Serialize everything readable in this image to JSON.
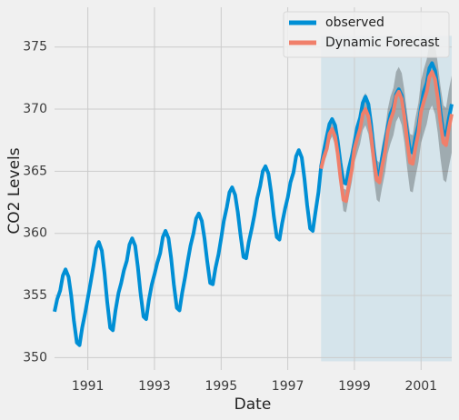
{
  "chart_data": {
    "type": "line",
    "xlabel": "Date",
    "ylabel": "CO2 Levels",
    "xlim": [
      1990,
      2001.92
    ],
    "ylim": [
      349,
      378.2
    ],
    "xticks": [
      1991,
      1993,
      1995,
      1997,
      1999,
      2001
    ],
    "yticks": [
      350,
      355,
      360,
      365,
      370,
      375
    ],
    "grid": true,
    "legend": "upper right",
    "shaded_region": {
      "x": [
        1998,
        2001.92
      ],
      "y": [
        349.7,
        375.9
      ],
      "color": "#d5e4eb"
    },
    "series": [
      {
        "name": "observed",
        "color": "#008fd5",
        "x": [
          1990,
          1990.08,
          1990.17,
          1990.25,
          1990.33,
          1990.42,
          1990.5,
          1990.58,
          1990.67,
          1990.75,
          1990.83,
          1990.92,
          1991,
          1991.08,
          1991.17,
          1991.25,
          1991.33,
          1991.42,
          1991.5,
          1991.58,
          1991.67,
          1991.75,
          1991.83,
          1991.92,
          1992,
          1992.08,
          1992.17,
          1992.25,
          1992.33,
          1992.42,
          1992.5,
          1992.58,
          1992.67,
          1992.75,
          1992.83,
          1992.92,
          1993,
          1993.08,
          1993.17,
          1993.25,
          1993.33,
          1993.42,
          1993.5,
          1993.58,
          1993.67,
          1993.75,
          1993.83,
          1993.92,
          1994,
          1994.08,
          1994.17,
          1994.25,
          1994.33,
          1994.42,
          1994.5,
          1994.58,
          1994.67,
          1994.75,
          1994.83,
          1994.92,
          1995,
          1995.08,
          1995.17,
          1995.25,
          1995.33,
          1995.42,
          1995.5,
          1995.58,
          1995.67,
          1995.75,
          1995.83,
          1995.92,
          1996,
          1996.08,
          1996.17,
          1996.25,
          1996.33,
          1996.42,
          1996.5,
          1996.58,
          1996.67,
          1996.75,
          1996.83,
          1996.92,
          1997,
          1997.08,
          1997.17,
          1997.25,
          1997.33,
          1997.42,
          1997.5,
          1997.58,
          1997.67,
          1997.75,
          1997.83,
          1997.92,
          1998,
          1998.08,
          1998.17,
          1998.25,
          1998.33,
          1998.42,
          1998.5,
          1998.58,
          1998.67,
          1998.75,
          1998.83,
          1998.92,
          1999,
          1999.08,
          1999.17,
          1999.25,
          1999.33,
          1999.42,
          1999.5,
          1999.58,
          1999.67,
          1999.75,
          1999.83,
          1999.92,
          2000,
          2000.08,
          2000.17,
          2000.25,
          2000.33,
          2000.42,
          2000.5,
          2000.58,
          2000.67,
          2000.75,
          2000.83,
          2000.92,
          2001,
          2001.08,
          2001.17,
          2001.25,
          2001.33,
          2001.42,
          2001.5,
          2001.58,
          2001.67,
          2001.75,
          2001.83,
          2001.92
        ],
        "values": [
          353.7,
          354.7,
          355.4,
          356.6,
          357.1,
          356.5,
          355.0,
          353.0,
          351.2,
          351.0,
          352.4,
          353.6,
          354.8,
          356.0,
          357.4,
          358.8,
          359.3,
          358.6,
          356.8,
          354.5,
          352.4,
          352.2,
          353.8,
          355.2,
          356.0,
          357.0,
          357.8,
          359.1,
          359.6,
          359.0,
          357.3,
          355.2,
          353.3,
          353.1,
          354.6,
          355.9,
          356.7,
          357.6,
          358.4,
          359.7,
          360.2,
          359.6,
          358.0,
          355.9,
          354.0,
          353.8,
          355.2,
          356.5,
          357.8,
          359.0,
          360.0,
          361.2,
          361.6,
          361.0,
          359.6,
          357.8,
          356.0,
          355.9,
          357.2,
          358.3,
          359.6,
          361.0,
          362.1,
          363.3,
          363.7,
          363.1,
          361.7,
          359.9,
          358.1,
          358.0,
          359.3,
          360.4,
          361.5,
          362.8,
          363.8,
          365.0,
          365.4,
          364.8,
          363.3,
          361.4,
          359.7,
          359.5,
          360.8,
          362.0,
          362.9,
          364.1,
          364.9,
          366.2,
          366.7,
          366.1,
          364.4,
          362.3,
          360.4,
          360.2,
          361.7,
          363.3,
          365.4,
          366.6,
          367.8,
          368.8,
          369.2,
          368.7,
          367.4,
          365.7,
          364.1,
          364.0,
          365.2,
          366.2,
          367.3,
          368.5,
          369.3,
          370.5,
          371.0,
          370.4,
          368.8,
          366.8,
          364.9,
          364.7,
          366.1,
          367.4,
          368.6,
          369.6,
          370.2,
          371.2,
          371.6,
          371.1,
          369.8,
          368.2,
          366.6,
          366.5,
          367.7,
          368.7,
          370.2,
          371.4,
          372.1,
          373.3,
          373.7,
          373.1,
          371.7,
          369.8,
          368.0,
          367.9,
          369.2,
          370.4
        ]
      },
      {
        "name": "Dynamic Forecast",
        "color": "#f07f6a",
        "x": [
          1998,
          1998.08,
          1998.17,
          1998.25,
          1998.33,
          1998.42,
          1998.5,
          1998.58,
          1998.67,
          1998.75,
          1998.83,
          1998.92,
          1999,
          1999.08,
          1999.17,
          1999.25,
          1999.33,
          1999.42,
          1999.5,
          1999.58,
          1999.67,
          1999.75,
          1999.83,
          1999.92,
          2000,
          2000.08,
          2000.17,
          2000.25,
          2000.33,
          2000.42,
          2000.5,
          2000.58,
          2000.67,
          2000.75,
          2000.83,
          2000.92,
          2001,
          2001.08,
          2001.17,
          2001.25,
          2001.33,
          2001.42,
          2001.5,
          2001.58,
          2001.67,
          2001.75,
          2001.83,
          2001.92
        ],
        "values": [
          365.2,
          366.1,
          366.8,
          368.0,
          368.4,
          367.8,
          366.4,
          364.5,
          362.7,
          362.6,
          363.9,
          365.1,
          366.8,
          367.6,
          368.4,
          369.6,
          370.0,
          369.4,
          367.9,
          366.0,
          364.3,
          364.1,
          365.4,
          366.6,
          368.2,
          369.1,
          369.8,
          371.0,
          371.4,
          370.8,
          369.4,
          367.5,
          365.7,
          365.6,
          366.9,
          368.1,
          369.8,
          370.6,
          371.4,
          372.6,
          373.0,
          372.4,
          370.9,
          369.0,
          367.3,
          367.1,
          368.4,
          369.6
        ],
        "lower": [
          364.8,
          365.6,
          366.3,
          367.4,
          367.8,
          367.1,
          365.6,
          363.7,
          361.8,
          361.7,
          362.9,
          364.1,
          365.7,
          366.4,
          367.2,
          368.3,
          368.7,
          368.0,
          366.5,
          364.5,
          362.7,
          362.5,
          363.7,
          364.9,
          366.4,
          367.2,
          367.9,
          369.0,
          369.4,
          368.7,
          367.3,
          365.3,
          363.4,
          363.3,
          364.5,
          365.7,
          367.3,
          368.0,
          368.8,
          369.9,
          370.3,
          369.6,
          368.1,
          366.1,
          364.3,
          364.1,
          365.3,
          366.5
        ],
        "upper": [
          365.6,
          366.6,
          367.3,
          368.6,
          369.0,
          368.5,
          367.2,
          365.3,
          363.6,
          363.5,
          364.9,
          366.1,
          367.9,
          368.8,
          369.6,
          370.9,
          371.3,
          370.8,
          369.3,
          367.5,
          365.9,
          365.7,
          367.1,
          368.3,
          370.0,
          371.0,
          371.7,
          373.0,
          373.4,
          372.9,
          371.5,
          369.7,
          368.0,
          367.9,
          369.3,
          370.5,
          372.3,
          373.2,
          374.0,
          375.3,
          375.7,
          375.2,
          373.7,
          371.9,
          370.3,
          370.1,
          371.5,
          372.7
        ]
      }
    ]
  }
}
